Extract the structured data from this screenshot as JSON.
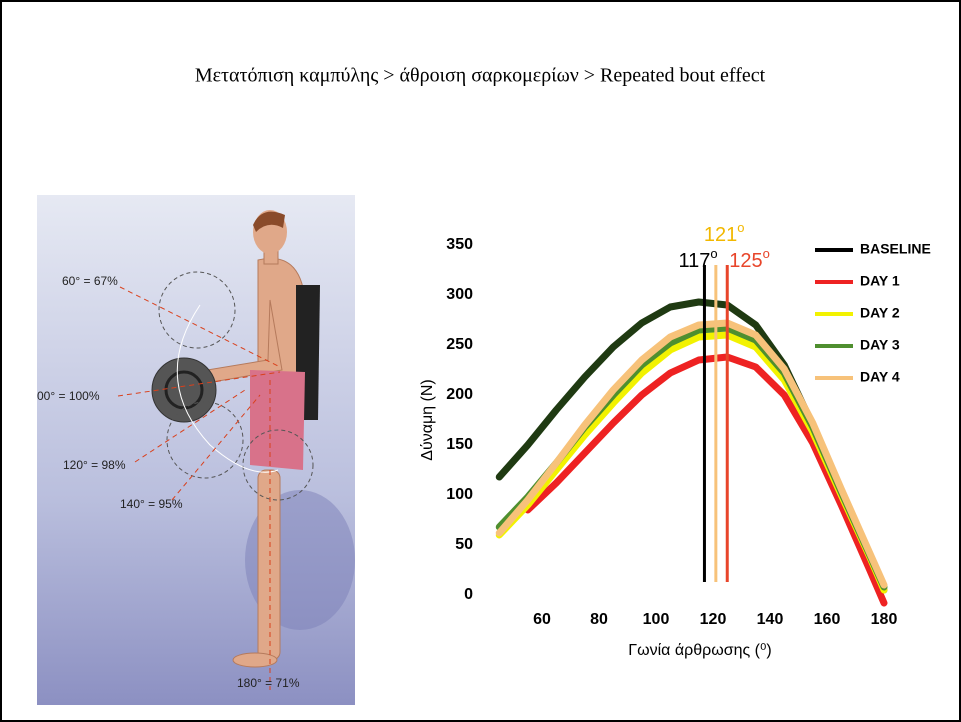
{
  "slide": {
    "title": "Μετατόπιση καμπύλης  > άθροιση σαρκομερίων  > Repeated bout effect"
  },
  "figure": {
    "labels": [
      "60° = 67%",
      "00° = 100%",
      "120° = 98%",
      "140° = 95%",
      "180° = 71%"
    ]
  },
  "chart_data": {
    "type": "line",
    "x_label": "Γωνία άρθρωσης (⁰)",
    "y_label": "Δύναμη (N)",
    "x": [
      45,
      55,
      65,
      75,
      85,
      95,
      105,
      115,
      125,
      135,
      145,
      155,
      165,
      175,
      180
    ],
    "series": [
      {
        "name": "BASELINE",
        "color": "#1f3a12",
        "legend_color": "#000000",
        "values": [
          118,
          150,
          185,
          218,
          248,
          272,
          288,
          293,
          290,
          270,
          230,
          170,
          100,
          35,
          5
        ]
      },
      {
        "name": "DAY 1",
        "color": "#ee2222",
        "values": [
          null,
          85,
          112,
          142,
          172,
          200,
          222,
          235,
          238,
          228,
          200,
          152,
          90,
          25,
          -8
        ]
      },
      {
        "name": "DAY 2",
        "color": "#f2f200",
        "values": [
          60,
          90,
          125,
          160,
          192,
          222,
          245,
          258,
          260,
          248,
          215,
          163,
          100,
          38,
          5
        ]
      },
      {
        "name": "DAY 3",
        "color": "#4f8f2f",
        "values": [
          68,
          98,
          132,
          168,
          200,
          230,
          252,
          265,
          267,
          255,
          222,
          168,
          103,
          40,
          8
        ]
      },
      {
        "name": "DAY 4",
        "color": "#f7c27a",
        "values": [
          62,
          95,
          132,
          170,
          205,
          235,
          258,
          270,
          272,
          260,
          226,
          172,
          106,
          42,
          10
        ]
      }
    ],
    "markers": [
      {
        "x": 117,
        "label": "117",
        "sup": "o",
        "color": "#000000"
      },
      {
        "x": 121,
        "label": "121",
        "sup": "o",
        "color": "#f7c27a",
        "text_color": "#f2b800"
      },
      {
        "x": 125,
        "label": "125",
        "sup": "o",
        "color": "#e8452a"
      }
    ],
    "xlim": [
      40,
      185
    ],
    "ylim": [
      0,
      350
    ],
    "xticks": [
      60,
      80,
      100,
      120,
      140,
      160,
      180
    ],
    "yticks": [
      0,
      50,
      100,
      150,
      200,
      250,
      300,
      350
    ]
  }
}
